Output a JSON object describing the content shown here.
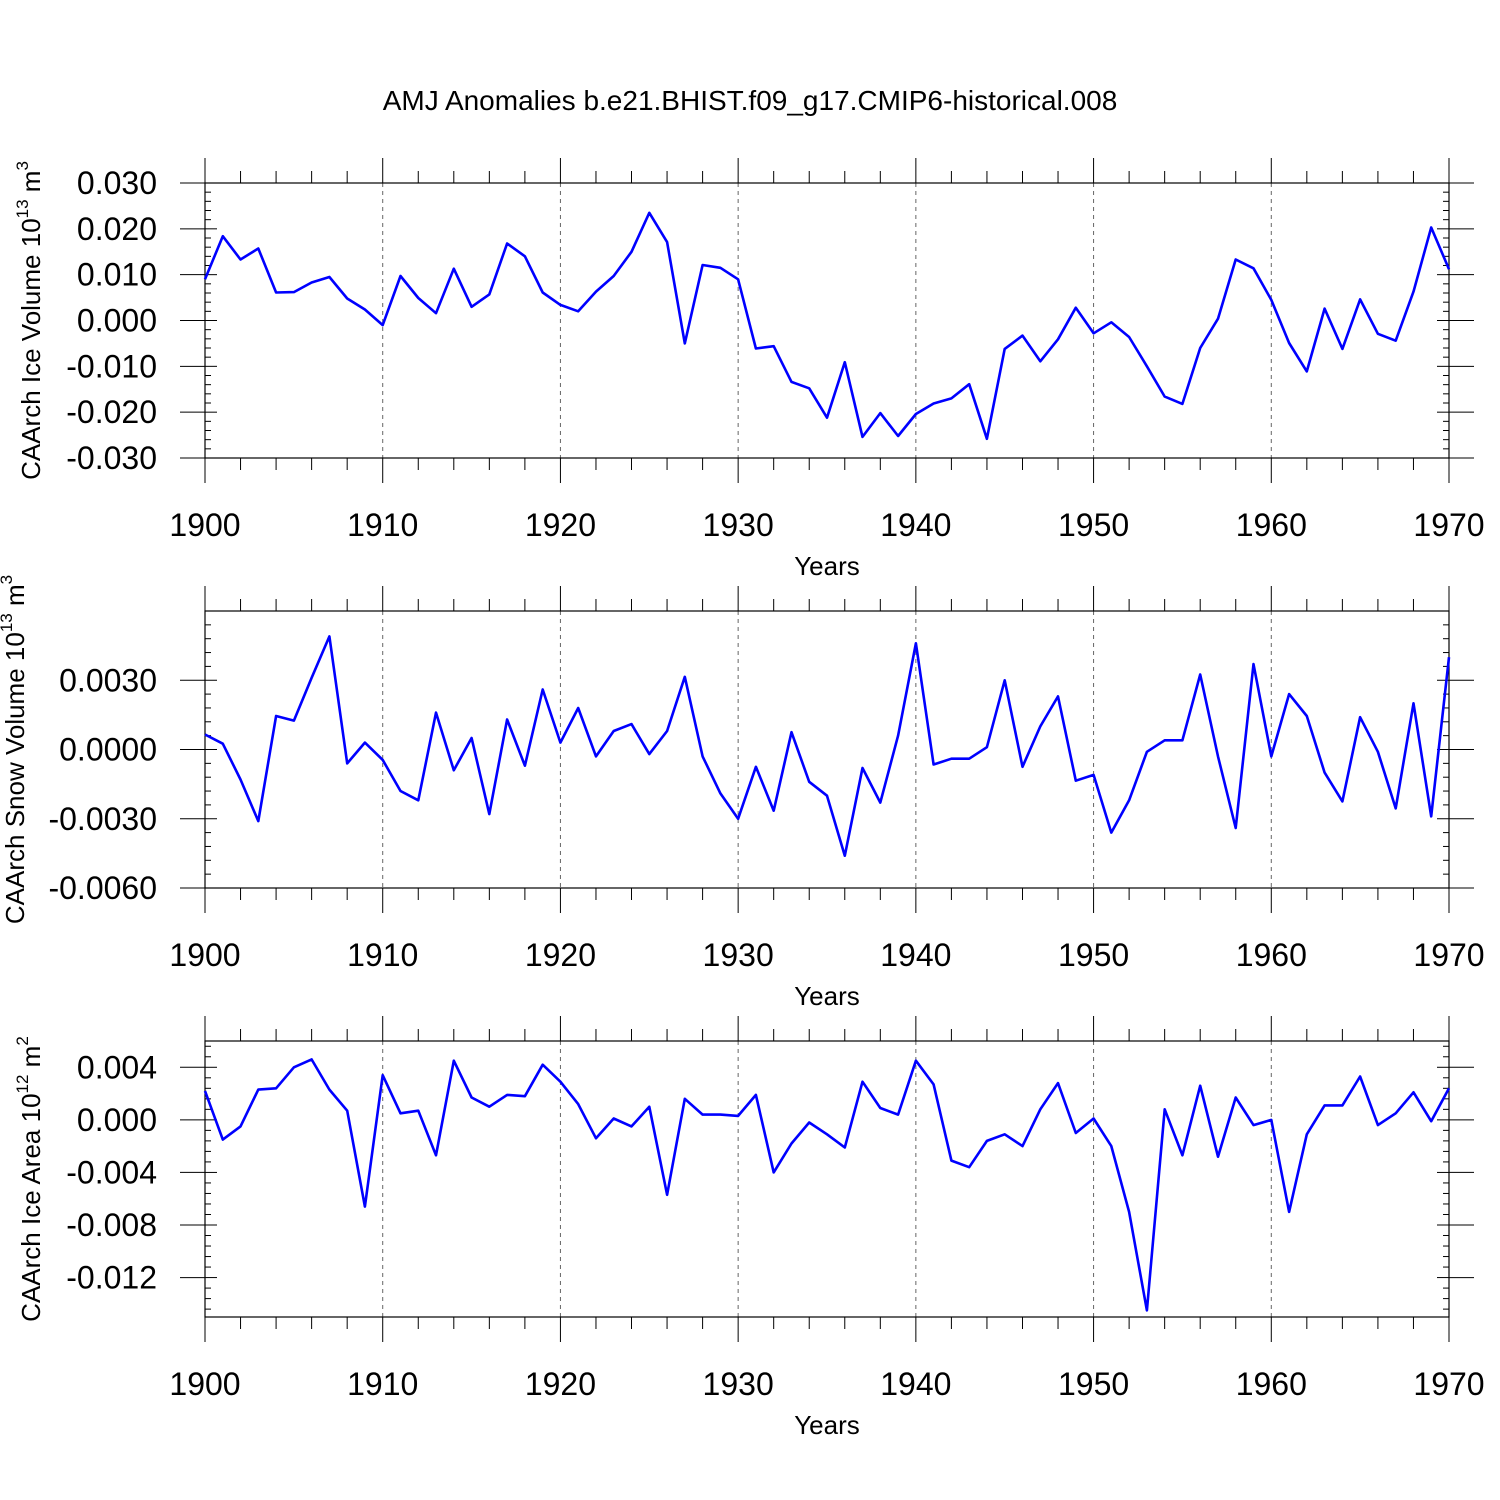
{
  "title": "AMJ Anomalies b.e21.BHIST.f09_g17.CMIP6-historical.008",
  "line_color": "#0000ff",
  "chart_data": [
    {
      "type": "line",
      "title": "AMJ Anomalies b.e21.BHIST.f09_g17.CMIP6-historical.008",
      "xlabel": "Years",
      "ylabel_main": "CAArch Ice Volume 10",
      "ylabel_exp": "13",
      "ylabel_unit": "m",
      "ylabel_unit_exp": "3",
      "xlim": [
        1900,
        1970
      ],
      "ylim": [
        -0.03,
        0.03
      ],
      "xticks": [
        "1900",
        "1910",
        "1920",
        "1930",
        "1940",
        "1950",
        "1960",
        "1970"
      ],
      "yticks": [
        {
          "value": 0.03,
          "label": "0.030"
        },
        {
          "value": 0.02,
          "label": "0.020"
        },
        {
          "value": 0.01,
          "label": "0.010"
        },
        {
          "value": 0.0,
          "label": "0.000"
        },
        {
          "value": -0.01,
          "label": "-0.010"
        },
        {
          "value": -0.02,
          "label": "-0.020"
        },
        {
          "value": -0.03,
          "label": "-0.030"
        }
      ],
      "series": [
        {
          "name": "CAArch Ice Volume",
          "x": [
            1900,
            1901,
            1902,
            1903,
            1904,
            1905,
            1906,
            1907,
            1908,
            1909,
            1910,
            1911,
            1912,
            1913,
            1914,
            1915,
            1916,
            1917,
            1918,
            1919,
            1920,
            1921,
            1922,
            1923,
            1924,
            1925,
            1926,
            1927,
            1928,
            1929,
            1930,
            1931,
            1932,
            1933,
            1934,
            1935,
            1936,
            1937,
            1938,
            1939,
            1940,
            1941,
            1942,
            1943,
            1944,
            1945,
            1946,
            1947,
            1948,
            1949,
            1950,
            1951,
            1952,
            1953,
            1954,
            1955,
            1956,
            1957,
            1958,
            1959,
            1960,
            1961,
            1962,
            1963,
            1964,
            1965,
            1966,
            1967,
            1968,
            1969,
            1970
          ],
          "values": [
            0.009,
            0.0184,
            0.0133,
            0.0157,
            0.0061,
            0.0062,
            0.0083,
            0.0095,
            0.0048,
            0.0024,
            -0.001,
            0.0097,
            0.0049,
            0.0016,
            0.0113,
            0.003,
            0.0057,
            0.0168,
            0.014,
            0.0061,
            0.0034,
            0.002,
            0.0063,
            0.0097,
            0.015,
            0.0235,
            0.0171,
            -0.005,
            0.0121,
            0.0115,
            0.009,
            -0.0061,
            -0.0056,
            -0.0134,
            -0.0148,
            -0.0212,
            -0.0091,
            -0.0254,
            -0.0202,
            -0.0252,
            -0.0204,
            -0.0181,
            -0.017,
            -0.0139,
            -0.0258,
            -0.0062,
            -0.0033,
            -0.0089,
            -0.0041,
            0.0028,
            -0.0028,
            -0.0004,
            -0.0036,
            -0.01,
            -0.0166,
            -0.0182,
            -0.006,
            0.0004,
            0.0133,
            0.0114,
            0.0045,
            -0.0049,
            -0.0111,
            0.0026,
            -0.0062,
            0.0046,
            -0.0029,
            -0.0044,
            0.0063,
            0.0203,
            0.0112
          ]
        }
      ]
    },
    {
      "type": "line",
      "title": "",
      "xlabel": "Years",
      "ylabel_main": "CAArch Snow Volume 10",
      "ylabel_exp": "13",
      "ylabel_unit": "m",
      "ylabel_unit_exp": "3",
      "xlim": [
        1900,
        1970
      ],
      "ylim": [
        -0.006,
        0.006
      ],
      "xticks": [
        "1900",
        "1910",
        "1920",
        "1930",
        "1940",
        "1950",
        "1960",
        "1970"
      ],
      "yticks": [
        {
          "value": 0.003,
          "label": "0.0030"
        },
        {
          "value": 0.0,
          "label": "0.0000"
        },
        {
          "value": -0.003,
          "label": "-0.0030"
        },
        {
          "value": -0.006,
          "label": "-0.0060"
        }
      ],
      "series": [
        {
          "name": "CAArch Snow Volume",
          "x": [
            1900,
            1901,
            1902,
            1903,
            1904,
            1905,
            1906,
            1907,
            1908,
            1909,
            1910,
            1911,
            1912,
            1913,
            1914,
            1915,
            1916,
            1917,
            1918,
            1919,
            1920,
            1921,
            1922,
            1923,
            1924,
            1925,
            1926,
            1927,
            1928,
            1929,
            1930,
            1931,
            1932,
            1933,
            1934,
            1935,
            1936,
            1937,
            1938,
            1939,
            1940,
            1941,
            1942,
            1943,
            1944,
            1945,
            1946,
            1947,
            1948,
            1949,
            1950,
            1951,
            1952,
            1953,
            1954,
            1955,
            1956,
            1957,
            1958,
            1959,
            1960,
            1961,
            1962,
            1963,
            1964,
            1965,
            1966,
            1967,
            1968,
            1969,
            1970
          ],
          "values": [
            0.00065,
            0.00025,
            -0.0013,
            -0.0031,
            0.00145,
            0.00125,
            0.0031,
            0.0049,
            -0.0006,
            0.0003,
            -0.00045,
            -0.0018,
            -0.0022,
            0.0016,
            -0.0009,
            0.0005,
            -0.0028,
            0.0013,
            -0.0007,
            0.0026,
            0.0003,
            0.0018,
            -0.0003,
            0.0008,
            0.0011,
            -0.0002,
            0.0008,
            0.00315,
            -0.0003,
            -0.0019,
            -0.003,
            -0.00075,
            -0.00265,
            0.00075,
            -0.0014,
            -0.002,
            -0.0046,
            -0.0008,
            -0.0023,
            0.0006,
            0.0046,
            -0.00065,
            -0.0004,
            -0.0004,
            0.0001,
            0.003,
            -0.00075,
            0.001,
            0.0023,
            -0.00135,
            -0.0011,
            -0.0036,
            -0.0022,
            -0.0001,
            0.0004,
            0.0004,
            0.00325,
            -0.0003,
            -0.0034,
            0.0037,
            -0.0003,
            0.0024,
            0.00145,
            -0.001,
            -0.00225,
            0.0014,
            -0.0001,
            -0.00255,
            0.002,
            -0.0029,
            0.004
          ]
        }
      ]
    },
    {
      "type": "line",
      "title": "",
      "xlabel": "Years",
      "ylabel_main": "CAArch Ice Area 10",
      "ylabel_exp": "12",
      "ylabel_unit": "m",
      "ylabel_unit_exp": "2",
      "xlim": [
        1900,
        1970
      ],
      "ylim": [
        -0.015,
        0.006
      ],
      "xticks": [
        "1900",
        "1910",
        "1920",
        "1930",
        "1940",
        "1950",
        "1960",
        "1970"
      ],
      "yticks": [
        {
          "value": 0.004,
          "label": "0.004"
        },
        {
          "value": 0.0,
          "label": "0.000"
        },
        {
          "value": -0.004,
          "label": "-0.004"
        },
        {
          "value": -0.008,
          "label": "-0.008"
        },
        {
          "value": -0.012,
          "label": "-0.012"
        }
      ],
      "series": [
        {
          "name": "CAArch Ice Area",
          "x": [
            1900,
            1901,
            1902,
            1903,
            1904,
            1905,
            1906,
            1907,
            1908,
            1909,
            1910,
            1911,
            1912,
            1913,
            1914,
            1915,
            1916,
            1917,
            1918,
            1919,
            1920,
            1921,
            1922,
            1923,
            1924,
            1925,
            1926,
            1927,
            1928,
            1929,
            1930,
            1931,
            1932,
            1933,
            1934,
            1935,
            1936,
            1937,
            1938,
            1939,
            1940,
            1941,
            1942,
            1943,
            1944,
            1945,
            1946,
            1947,
            1948,
            1949,
            1950,
            1951,
            1952,
            1953,
            1954,
            1955,
            1956,
            1957,
            1958,
            1959,
            1960,
            1961,
            1962,
            1963,
            1964,
            1965,
            1966,
            1967,
            1968,
            1969,
            1970
          ],
          "values": [
            0.0022,
            -0.0015,
            -0.0005,
            0.0023,
            0.0024,
            0.004,
            0.0046,
            0.0023,
            0.0007,
            -0.0066,
            0.0034,
            0.0005,
            0.0007,
            -0.0027,
            0.0045,
            0.0017,
            0.001,
            0.0019,
            0.0018,
            0.0042,
            0.0029,
            0.0012,
            -0.0014,
            0.0001,
            -0.0005,
            0.001,
            -0.0057,
            0.0016,
            0.0004,
            0.0004,
            0.0003,
            0.0019,
            -0.004,
            -0.0018,
            -0.0002,
            -0.0011,
            -0.0021,
            0.0029,
            0.0009,
            0.0004,
            0.0045,
            0.0027,
            -0.0031,
            -0.0036,
            -0.0016,
            -0.0011,
            -0.002,
            0.0008,
            0.0028,
            -0.001,
            0.0001,
            -0.002,
            -0.007,
            -0.0145,
            0.0008,
            -0.0027,
            0.0026,
            -0.0028,
            0.0017,
            -0.0004,
            0.0,
            -0.007,
            -0.0011,
            0.0011,
            0.0011,
            0.0033,
            -0.0004,
            0.0005,
            0.0021,
            -0.0001,
            0.0024
          ]
        }
      ]
    }
  ]
}
